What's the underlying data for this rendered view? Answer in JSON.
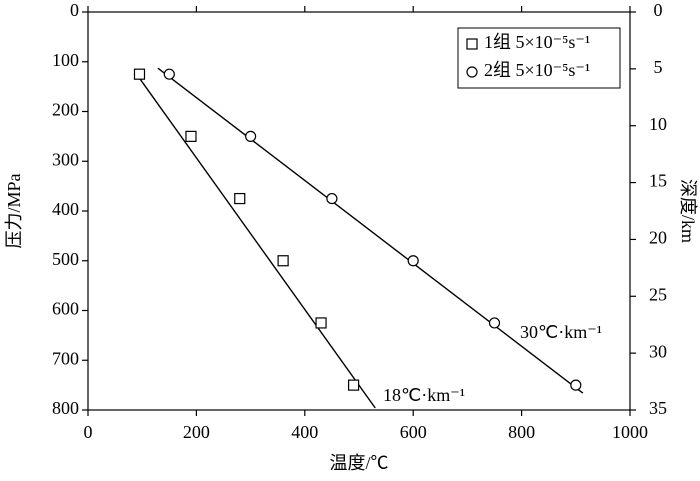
{
  "chart_data": {
    "type": "scatter",
    "xlabel": "温度/℃",
    "ylabel": "压力/MPa",
    "y2label": "深度/km",
    "xlim": [
      0,
      1000
    ],
    "xticks": [
      0,
      200,
      400,
      600,
      800,
      1000
    ],
    "ylim": [
      0,
      800
    ],
    "yticks": [
      0,
      100,
      200,
      300,
      400,
      500,
      600,
      700,
      800
    ],
    "y2lim": [
      0,
      35
    ],
    "y2ticks": [
      0,
      5,
      10,
      15,
      20,
      25,
      30,
      35
    ],
    "y_inverted": true,
    "legend": "upper right",
    "series": [
      {
        "name": "1组 5×10⁻⁵s⁻¹",
        "marker": "square",
        "color": "#000000",
        "x": [
          95,
          190,
          280,
          360,
          430,
          490
        ],
        "values": [
          125,
          250,
          375,
          500,
          625,
          750
        ]
      },
      {
        "name": "2组 5×10⁻⁵s⁻¹",
        "marker": "circle",
        "color": "#000000",
        "x": [
          150,
          300,
          450,
          600,
          750,
          900
        ],
        "values": [
          125,
          250,
          375,
          500,
          625,
          750
        ]
      }
    ],
    "fit_lines": [
      {
        "label": "18℃·km⁻¹",
        "x": [
          87,
          530
        ],
        "values": [
          121,
          796
        ]
      },
      {
        "label": "30℃·km⁻¹",
        "x": [
          129,
          913
        ],
        "values": [
          113,
          766
        ]
      }
    ]
  }
}
